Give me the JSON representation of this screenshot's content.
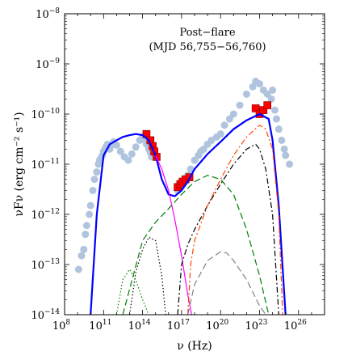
{
  "chart_data": {
    "type": "scatter",
    "title": "",
    "annotations": [
      "Post−flare",
      "(MJD 56,755−56,760)"
    ],
    "xlabel": "ν (Hz)",
    "ylabel": "νFν (erg cm⁻² s⁻¹)",
    "x_scale": "log",
    "y_scale": "log",
    "xlim": [
      100000000.0,
      1e+28
    ],
    "ylim": [
      1e-14,
      1e-08
    ],
    "x_ticks": [
      100000000.0,
      100000000000.0,
      100000000000000.0,
      1e+17,
      1e+20,
      1e+23,
      1e+26
    ],
    "y_ticks": [
      1e-14,
      1e-13,
      1e-12,
      1e-11,
      1e-10,
      1e-09,
      1e-08
    ],
    "grid": false,
    "legend": "none",
    "series": [
      {
        "type": "scatter",
        "role": "archival",
        "color": "#b0c4de",
        "marker": "circle",
        "x": [
          1200000000.0,
          2000000000.0,
          3000000000.0,
          4000000000.0,
          5000000000.0,
          8000000000.0,
          10000000000.0,
          15000000000.0,
          20000000000.0,
          30000000000.0,
          40000000000.0,
          50000000000.0,
          60000000000.0,
          80000000000.0,
          100000000000.0,
          130000000000.0,
          150000000000.0,
          200000000000.0,
          250000000000.0,
          300000000000.0,
          400000000000.0,
          600000000000.0,
          1000000000000.0,
          2000000000000.0,
          4000000000000.0,
          8000000000000.0,
          15000000000000.0,
          30000000000000.0,
          60000000000000.0,
          100000000000000.0,
          150000000000000.0,
          200000000000000.0,
          300000000000000.0,
          400000000000000.0,
          500000000000000.0,
          5e+16,
          7e+16,
          1e+17,
          2e+17,
          3e+17,
          5e+17,
          1e+18,
          2e+18,
          3e+18,
          5e+18,
          1e+19,
          2e+19,
          5e+19,
          1e+20,
          2e+20,
          5e+20,
          1e+21,
          3e+21,
          1e+22,
          3e+22,
          5e+22,
          1e+23,
          2e+23,
          4e+23,
          8e+23,
          1e+24,
          1.5e+24,
          2e+24,
          3e+24,
          5e+24,
          8e+24,
          1e+25,
          2e+25
        ],
        "y": [
          8e-14,
          1.5e-13,
          2e-13,
          4e-13,
          6e-13,
          1e-12,
          1.5e-12,
          3e-12,
          5e-12,
          7e-12,
          1e-11,
          1.2e-11,
          1.3e-11,
          1.5e-11,
          1.8e-11,
          2e-11,
          2.2e-11,
          2.5e-11,
          2.2e-11,
          2e-11,
          2.4e-11,
          2.8e-11,
          2.4e-11,
          1.8e-11,
          1.4e-11,
          1.2e-11,
          1.6e-11,
          2.2e-11,
          3e-11,
          3.5e-11,
          3e-11,
          2.5e-11,
          2e-11,
          1.7e-11,
          1.4e-11,
          3e-12,
          3.5e-12,
          4e-12,
          5e-12,
          6e-12,
          8e-12,
          1.2e-11,
          1.5e-11,
          1.8e-11,
          2e-11,
          2.5e-11,
          3e-11,
          3.5e-11,
          4e-11,
          6e-11,
          8e-11,
          1e-10,
          1.5e-10,
          2.5e-10,
          3.5e-10,
          4.5e-10,
          4e-10,
          3e-10,
          2.5e-10,
          2e-10,
          3e-10,
          1.2e-10,
          8e-11,
          5e-11,
          3e-11,
          2e-11,
          1.5e-11,
          1e-11
        ]
      },
      {
        "type": "scatter",
        "role": "post-flare",
        "color": "#ff0000",
        "marker": "square",
        "x": [
          200000000000000.0,
          400000000000000.0,
          600000000000000.0,
          800000000000000.0,
          1200000000000000.0,
          5e+16,
          8e+16,
          1.2e+17,
          2e+17,
          4e+17,
          5e+22,
          1e+23,
          2e+23,
          4e+23
        ],
        "y": [
          4e-11,
          3e-11,
          2.3e-11,
          1.8e-11,
          1.4e-11,
          3.5e-12,
          4e-12,
          4.5e-12,
          5e-12,
          5.5e-12,
          1.3e-10,
          1e-10,
          1.2e-10,
          1.5e-10
        ]
      },
      {
        "type": "line",
        "role": "total model",
        "color": "#0000ff",
        "dash": "solid",
        "x": [
          10000000000.0,
          30000000000.0,
          100000000000.0,
          300000000000.0,
          1000000000000.0,
          3000000000000.0,
          10000000000000.0,
          30000000000000.0,
          100000000000000.0,
          300000000000000.0,
          1000000000000000.0,
          3000000000000000.0,
          1e+16,
          3e+16,
          1e+17,
          3e+17,
          1e+18,
          1e+19,
          1e+20,
          1e+21,
          1e+22,
          1e+23,
          5e+23,
          1e+24,
          3e+24,
          1e+25
        ],
        "y": [
          1e-14,
          1e-12,
          1.5e-11,
          2.5e-11,
          3e-11,
          3.5e-11,
          3.8e-11,
          4e-11,
          3.8e-11,
          3e-11,
          1.5e-11,
          5e-12,
          2.5e-12,
          2.3e-12,
          3e-12,
          4.5e-12,
          8e-12,
          1.6e-11,
          2.8e-11,
          5e-11,
          7.5e-11,
          1e-10,
          8e-11,
          3e-11,
          1.5e-12,
          1e-14
        ]
      },
      {
        "type": "line",
        "role": "synchrotron",
        "color": "#ff00ff",
        "dash": "solid",
        "x": [
          1000000000000000.0,
          3000000000000000.0,
          1e+16,
          3e+16,
          1e+17,
          3e+17,
          6e+17
        ],
        "y": [
          1.5e-11,
          8e-12,
          3e-12,
          8e-13,
          1.5e-13,
          2.5e-14,
          1e-14
        ]
      },
      {
        "type": "line",
        "role": "green dashed",
        "color": "#008000",
        "dash": "dashed",
        "x": [
          3000000000000.0,
          100000000000000.0,
          1000000000000000.0,
          1e+16,
          1e+17,
          1e+18,
          1e+19,
          1e+20,
          1e+21,
          1e+22,
          1e+23,
          5e+23
        ],
        "y": [
          1e-14,
          3e-13,
          7e-13,
          1.3e-12,
          2.5e-12,
          4.5e-12,
          6e-12,
          5e-12,
          2.5e-12,
          5e-13,
          6e-14,
          1e-14
        ]
      },
      {
        "type": "line",
        "role": "black dash-dot",
        "color": "#000000",
        "dash": "dashdot",
        "x": [
          5e+16,
          1e+17,
          3e+17,
          1e+18,
          1e+19,
          1e+20,
          1e+21,
          1e+22,
          5e+22,
          1e+23,
          3e+23,
          1e+24,
          3e+24
        ],
        "y": [
          1e-14,
          1e-13,
          2.5e-13,
          5e-13,
          1.5e-12,
          4e-12,
          1e-11,
          2e-11,
          2.5e-11,
          2e-11,
          8e-12,
          1e-12,
          1e-14
        ]
      },
      {
        "type": "line",
        "role": "orange dash-dot",
        "color": "#ff4500",
        "dash": "dashdot",
        "x": [
          3e+17,
          5e+17,
          1e+18,
          1e+19,
          1e+20,
          1e+21,
          1e+22,
          1e+23,
          3e+23,
          1e+24,
          3e+24,
          6e+24
        ],
        "y": [
          1e-14,
          1e-13,
          3e-13,
          1.5e-12,
          5e-12,
          1.5e-11,
          3.5e-11,
          6e-11,
          5e-11,
          2e-11,
          1e-12,
          1e-14
        ]
      },
      {
        "type": "line",
        "role": "black dotted",
        "color": "#000000",
        "dash": "dotted",
        "x": [
          10000000000000.0,
          30000000000000.0,
          100000000000000.0,
          300000000000000.0,
          1000000000000000.0,
          3000000000000000.0,
          6000000000000000.0
        ],
        "y": [
          1e-14,
          7e-14,
          2e-13,
          3.5e-13,
          3e-13,
          6e-14,
          1e-14
        ]
      },
      {
        "type": "line",
        "role": "green dotted",
        "color": "#008000",
        "dash": "dotted",
        "x": [
          1000000000000.0,
          3000000000000.0,
          10000000000000.0,
          30000000000000.0,
          100000000000000.0,
          300000000000000.0
        ],
        "y": [
          1e-14,
          5e-14,
          8e-14,
          5e-14,
          2e-14,
          1e-14
        ]
      },
      {
        "type": "line",
        "role": "gray dashed",
        "color": "#808080",
        "dash": "dashed",
        "x": [
          3e+17,
          1e+18,
          1e+19,
          1e+20,
          3e+20,
          1e+21,
          1e+22,
          1e+23,
          3e+23
        ],
        "y": [
          1e-14,
          4e-14,
          1.2e-13,
          1.8e-13,
          1.7e-13,
          1.2e-13,
          5e-14,
          1.5e-14,
          1e-14
        ]
      }
    ]
  }
}
